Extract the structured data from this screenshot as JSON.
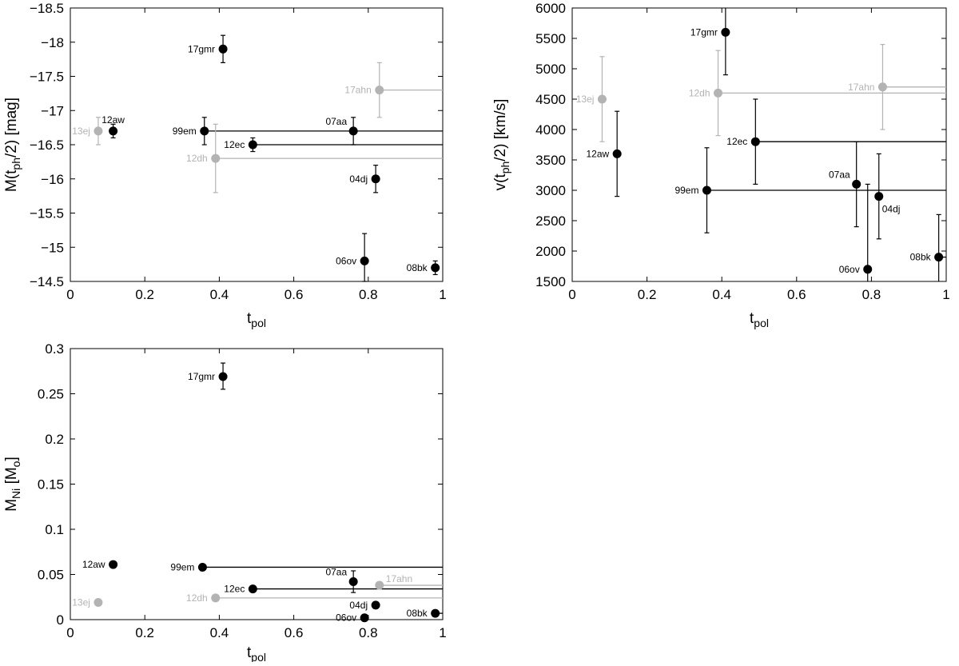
{
  "colors": {
    "main": "#000000",
    "secondary": "#b3b3b3"
  },
  "chart_data": [
    {
      "id": "mag",
      "type": "scatter",
      "ylabel_parts": [
        "M(t",
        "ph",
        "/2) [mag]"
      ],
      "xlabel_parts": [
        "t",
        "pol"
      ],
      "xlim": [
        0,
        1
      ],
      "ylim": [
        -14.5,
        -18.5
      ],
      "y_inverted": true,
      "xticks": [
        0,
        0.2,
        0.4,
        0.6,
        0.8,
        1
      ],
      "xtick_labels": [
        "0",
        "0.2",
        "0.4",
        "0.6",
        "0.8",
        "1"
      ],
      "yticks": [
        -18.5,
        -18,
        -17.5,
        -17,
        -16.5,
        -16,
        -15.5,
        -15,
        -14.5
      ],
      "ytick_labels": [
        "−18.5",
        "−18",
        "−17.5",
        "−17",
        "−16.5",
        "−16",
        "−15.5",
        "−15",
        "−14.5"
      ],
      "points": [
        {
          "label": "13ej",
          "x": 0.075,
          "y": -16.7,
          "ylo": -16.5,
          "yhi": -16.9,
          "xhi": null,
          "style": "secondary",
          "label_pos": "left"
        },
        {
          "label": "12aw",
          "x": 0.115,
          "y": -16.7,
          "ylo": -16.6,
          "yhi": -16.8,
          "xhi": null,
          "style": "main",
          "label_pos": "top"
        },
        {
          "label": "17gmr",
          "x": 0.41,
          "y": -17.9,
          "ylo": -17.7,
          "yhi": -18.1,
          "xhi": null,
          "style": "main",
          "label_pos": "left"
        },
        {
          "label": "99em",
          "x": 0.36,
          "y": -16.7,
          "ylo": -16.5,
          "yhi": -16.9,
          "xhi": 1.0,
          "style": "main",
          "label_pos": "left"
        },
        {
          "label": "12ec",
          "x": 0.49,
          "y": -16.5,
          "ylo": -16.4,
          "yhi": -16.6,
          "xhi": 1.0,
          "style": "main",
          "label_pos": "left"
        },
        {
          "label": "12dh",
          "x": 0.39,
          "y": -16.3,
          "ylo": -15.8,
          "yhi": -16.8,
          "xhi": 1.0,
          "style": "secondary",
          "label_pos": "left"
        },
        {
          "label": "07aa",
          "x": 0.76,
          "y": -16.7,
          "ylo": -16.5,
          "yhi": -16.9,
          "xhi": null,
          "style": "main",
          "label_pos": "topleft"
        },
        {
          "label": "17ahn",
          "x": 0.83,
          "y": -17.3,
          "ylo": -16.9,
          "yhi": -17.7,
          "xhi": 1.0,
          "style": "secondary",
          "label_pos": "left"
        },
        {
          "label": "04dj",
          "x": 0.82,
          "y": -16.0,
          "ylo": -15.8,
          "yhi": -16.2,
          "xhi": null,
          "style": "main",
          "label_pos": "left"
        },
        {
          "label": "06ov",
          "x": 0.79,
          "y": -14.8,
          "ylo": -14.5,
          "yhi": -15.2,
          "xhi": null,
          "style": "main",
          "label_pos": "left"
        },
        {
          "label": "08bk",
          "x": 0.98,
          "y": -14.7,
          "ylo": -14.6,
          "yhi": -14.8,
          "xhi": null,
          "style": "main",
          "label_pos": "left"
        }
      ]
    },
    {
      "id": "vel",
      "type": "scatter",
      "ylabel_parts": [
        "v(t",
        "ph",
        "/2) [km/s]"
      ],
      "xlabel_parts": [
        "t",
        "pol"
      ],
      "xlim": [
        0,
        1
      ],
      "ylim": [
        1500,
        6000
      ],
      "y_inverted": false,
      "xticks": [
        0,
        0.2,
        0.4,
        0.6,
        0.8,
        1
      ],
      "xtick_labels": [
        "0",
        "0.2",
        "0.4",
        "0.6",
        "0.8",
        "1"
      ],
      "yticks": [
        1500,
        2000,
        2500,
        3000,
        3500,
        4000,
        4500,
        5000,
        5500,
        6000
      ],
      "ytick_labels": [
        "1500",
        "2000",
        "2500",
        "3000",
        "3500",
        "4000",
        "4500",
        "5000",
        "5500",
        "6000"
      ],
      "points": [
        {
          "label": "13ej",
          "x": 0.08,
          "y": 4500,
          "ylo": 3800,
          "yhi": 5200,
          "xhi": null,
          "style": "secondary",
          "label_pos": "left"
        },
        {
          "label": "12aw",
          "x": 0.12,
          "y": 3600,
          "ylo": 2900,
          "yhi": 4300,
          "xhi": null,
          "style": "main",
          "label_pos": "left"
        },
        {
          "label": "17gmr",
          "x": 0.41,
          "y": 5600,
          "ylo": 4900,
          "yhi": 6300,
          "xhi": null,
          "style": "main",
          "label_pos": "left"
        },
        {
          "label": "12dh",
          "x": 0.39,
          "y": 4600,
          "ylo": 3900,
          "yhi": 5300,
          "xhi": 1.0,
          "style": "secondary",
          "label_pos": "left"
        },
        {
          "label": "17ahn",
          "x": 0.83,
          "y": 4700,
          "ylo": 4000,
          "yhi": 5400,
          "xhi": 1.0,
          "style": "secondary",
          "label_pos": "left"
        },
        {
          "label": "12ec",
          "x": 0.49,
          "y": 3800,
          "ylo": 3100,
          "yhi": 4500,
          "xhi": 1.0,
          "style": "main",
          "label_pos": "left"
        },
        {
          "label": "99em",
          "x": 0.36,
          "y": 3000,
          "ylo": 2300,
          "yhi": 3700,
          "xhi": 1.0,
          "style": "main",
          "label_pos": "left"
        },
        {
          "label": "07aa",
          "x": 0.76,
          "y": 3100,
          "ylo": 2400,
          "yhi": 3800,
          "xhi": null,
          "style": "main",
          "label_pos": "topleft"
        },
        {
          "label": "04dj",
          "x": 0.82,
          "y": 2900,
          "ylo": 2200,
          "yhi": 3600,
          "xhi": null,
          "style": "main",
          "label_pos": "bottomright"
        },
        {
          "label": "06ov",
          "x": 0.79,
          "y": 1700,
          "ylo": 1000,
          "yhi": 3100,
          "xhi": null,
          "style": "main",
          "label_pos": "left"
        },
        {
          "label": "08bk",
          "x": 0.98,
          "y": 1900,
          "ylo": 1200,
          "yhi": 2600,
          "xhi": 1.0,
          "style": "main",
          "label_pos": "left"
        }
      ]
    },
    {
      "id": "ni",
      "type": "scatter",
      "ylabel_parts": [
        "M",
        "Ni",
        " [M",
        "o",
        "]"
      ],
      "xlabel_parts": [
        "t",
        "pol"
      ],
      "xlim": [
        0,
        1
      ],
      "ylim": [
        0,
        0.3
      ],
      "y_inverted": false,
      "xticks": [
        0,
        0.2,
        0.4,
        0.6,
        0.8,
        1
      ],
      "xtick_labels": [
        "0",
        "0.2",
        "0.4",
        "0.6",
        "0.8",
        "1"
      ],
      "yticks": [
        0,
        0.05,
        0.1,
        0.15,
        0.2,
        0.25,
        0.3
      ],
      "ytick_labels": [
        "0",
        "0.05",
        "0.1",
        "0.15",
        "0.2",
        "0.25",
        "0.3"
      ],
      "points": [
        {
          "label": "13ej",
          "x": 0.075,
          "y": 0.019,
          "ylo": null,
          "yhi": null,
          "xhi": null,
          "style": "secondary",
          "label_pos": "left"
        },
        {
          "label": "12aw",
          "x": 0.115,
          "y": 0.061,
          "ylo": null,
          "yhi": null,
          "xhi": null,
          "style": "main",
          "label_pos": "left"
        },
        {
          "label": "17gmr",
          "x": 0.41,
          "y": 0.269,
          "ylo": 0.255,
          "yhi": 0.284,
          "xhi": null,
          "style": "main",
          "label_pos": "left"
        },
        {
          "label": "99em",
          "x": 0.355,
          "y": 0.058,
          "ylo": null,
          "yhi": null,
          "xhi": 1.0,
          "style": "main",
          "label_pos": "left"
        },
        {
          "label": "12dh",
          "x": 0.39,
          "y": 0.024,
          "ylo": null,
          "yhi": null,
          "xhi": 1.0,
          "style": "secondary",
          "label_pos": "left"
        },
        {
          "label": "12ec",
          "x": 0.49,
          "y": 0.034,
          "ylo": null,
          "yhi": null,
          "xhi": 1.0,
          "style": "main",
          "label_pos": "left"
        },
        {
          "label": "07aa",
          "x": 0.76,
          "y": 0.042,
          "ylo": 0.03,
          "yhi": 0.054,
          "xhi": null,
          "style": "main",
          "label_pos": "topleft"
        },
        {
          "label": "17ahn",
          "x": 0.83,
          "y": 0.038,
          "ylo": null,
          "yhi": null,
          "xhi": 1.0,
          "style": "secondary",
          "label_pos": "topright"
        },
        {
          "label": "04dj",
          "x": 0.82,
          "y": 0.016,
          "ylo": null,
          "yhi": null,
          "xhi": null,
          "style": "main",
          "label_pos": "left"
        },
        {
          "label": "06ov",
          "x": 0.79,
          "y": 0.002,
          "ylo": null,
          "yhi": null,
          "xhi": null,
          "style": "main",
          "label_pos": "left"
        },
        {
          "label": "08bk",
          "x": 0.98,
          "y": 0.007,
          "ylo": null,
          "yhi": null,
          "xhi": 1.0,
          "style": "main",
          "label_pos": "left"
        }
      ]
    }
  ]
}
